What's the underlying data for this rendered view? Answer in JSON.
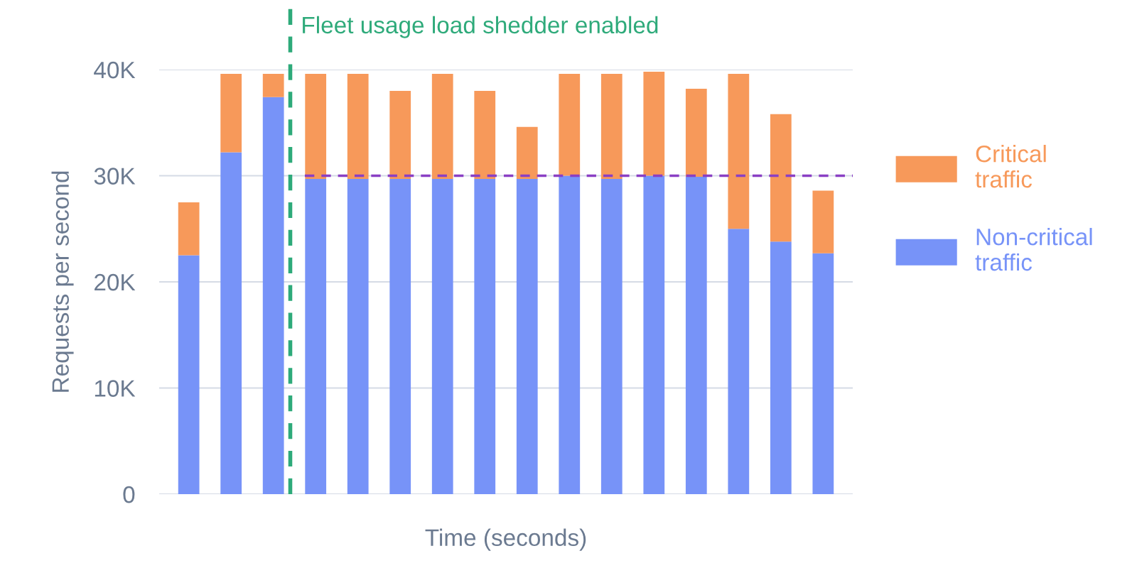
{
  "chart_data": {
    "type": "bar",
    "stacked": true,
    "xlabel": "Time (seconds)",
    "ylabel": "Requests per second",
    "categories": [
      null,
      null,
      null,
      null,
      null,
      null,
      null,
      null,
      null,
      null,
      null,
      null,
      null,
      null,
      null,
      null
    ],
    "series": [
      {
        "name": "Non-critical traffic",
        "color": "#7793f8",
        "values": [
          22500,
          32200,
          37400,
          29700,
          29700,
          29700,
          29700,
          29700,
          29700,
          30000,
          29700,
          30000,
          29900,
          25000,
          23800,
          22700
        ]
      },
      {
        "name": "Critical traffic",
        "color": "#f7995a",
        "values": [
          5000,
          7400,
          2200,
          9900,
          9900,
          8300,
          9900,
          8300,
          4900,
          9600,
          9900,
          9800,
          8300,
          14600,
          12000,
          5900
        ]
      }
    ],
    "ylim": [
      0,
      40000
    ],
    "yticks": [
      0,
      {
        "value": 10000,
        "label": "10K"
      },
      {
        "value": 20000,
        "label": "20K"
      },
      {
        "value": 30000,
        "label": "30K"
      },
      {
        "value": 40000,
        "label": "40K"
      }
    ],
    "grid": "y",
    "legend": "right",
    "annotations": [
      "Fleet usage load shedder enabled"
    ],
    "ref_lines": [
      {
        "axis": "y",
        "value": 30000,
        "color": "#8a3fc4",
        "line_style": "dashed"
      }
    ]
  }
}
